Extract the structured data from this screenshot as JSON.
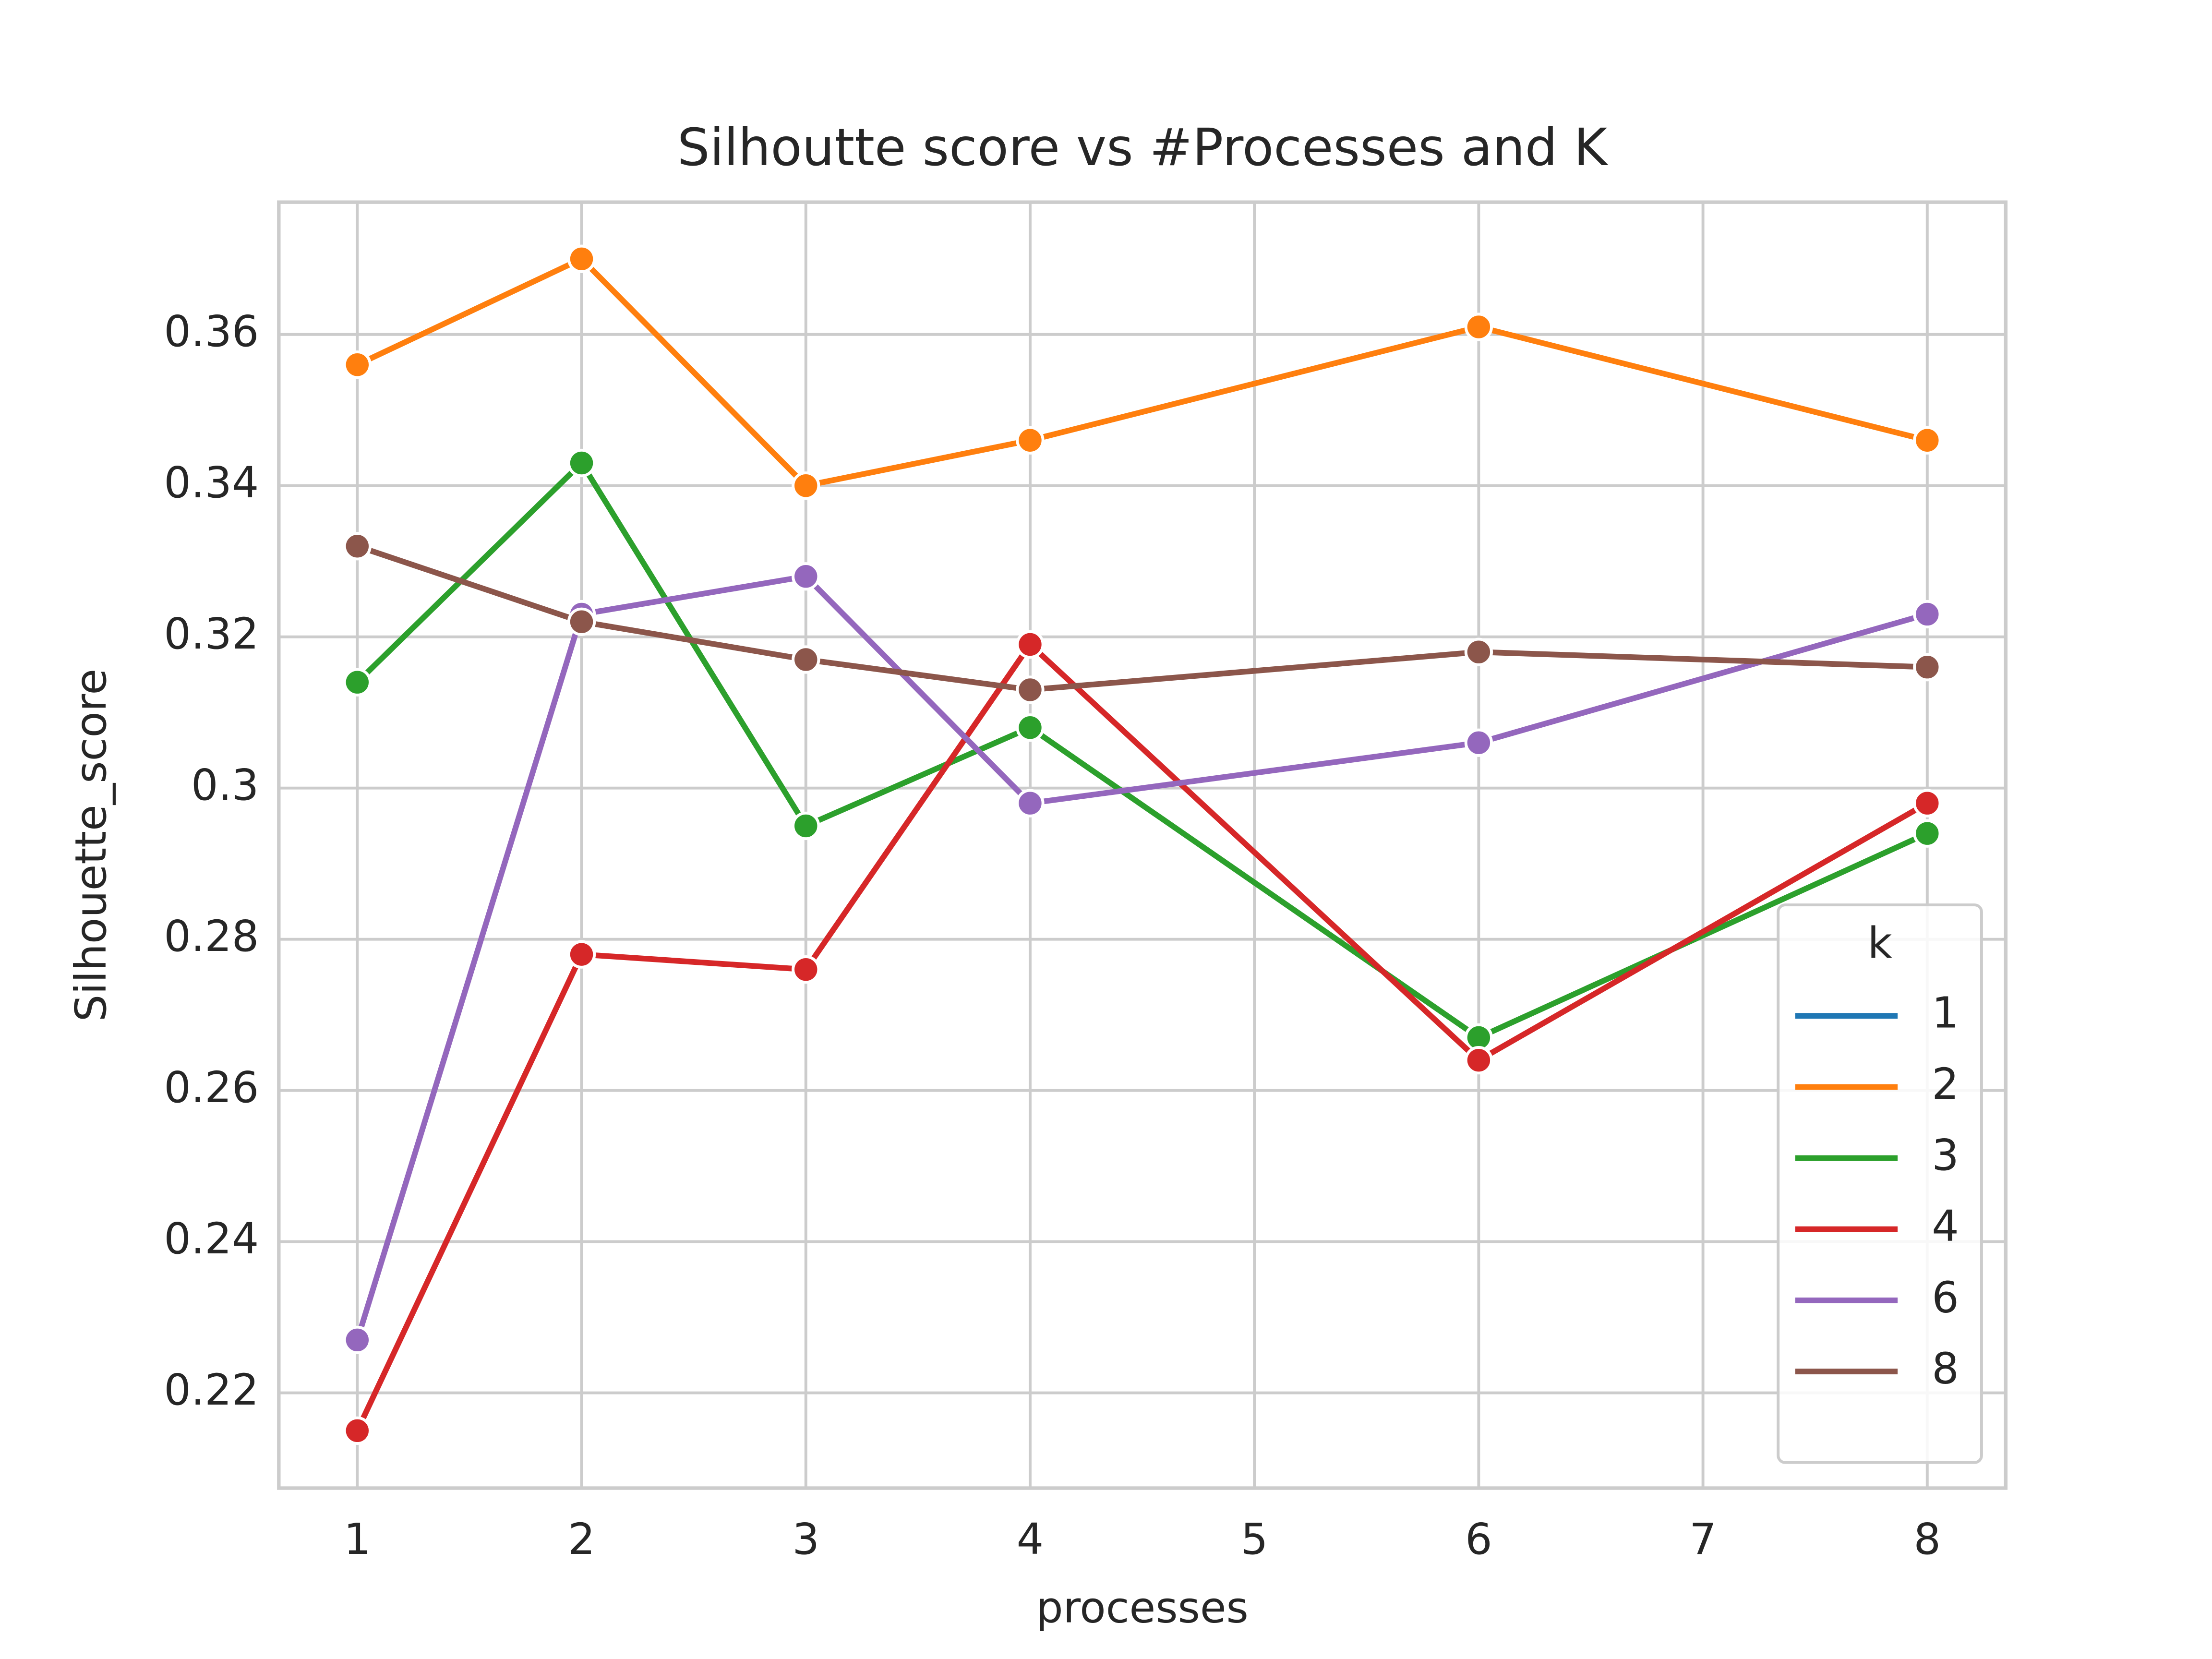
{
  "chart_data": {
    "type": "line",
    "title": "Silhoutte score vs #Processes and K",
    "xlabel": "processes",
    "ylabel": "Silhouette_score",
    "x": [
      1,
      2,
      3,
      4,
      6,
      8
    ],
    "series": [
      {
        "name": "1",
        "color": "#1f77b4",
        "values": [
          null,
          null,
          null,
          null,
          null,
          null
        ]
      },
      {
        "name": "2",
        "color": "#ff7f0e",
        "values": [
          0.356,
          0.37,
          0.34,
          0.346,
          0.361,
          0.346
        ]
      },
      {
        "name": "3",
        "color": "#2ca02c",
        "values": [
          0.314,
          0.343,
          0.295,
          0.308,
          0.267,
          0.294
        ]
      },
      {
        "name": "4",
        "color": "#d62728",
        "values": [
          0.215,
          0.278,
          0.276,
          0.319,
          0.264,
          0.298
        ]
      },
      {
        "name": "6",
        "color": "#9467bd",
        "values": [
          0.227,
          0.323,
          0.328,
          0.298,
          0.306,
          0.323
        ]
      },
      {
        "name": "8",
        "color": "#8c564b",
        "values": [
          0.332,
          0.322,
          0.317,
          0.313,
          0.318,
          0.316
        ]
      }
    ],
    "legend_title": "k",
    "legend": "lower right",
    "grid": true,
    "xlim": [
      0.65,
      8.35
    ],
    "xticks": [
      1,
      2,
      3,
      4,
      5,
      6,
      7,
      8
    ],
    "ylim": [
      0.2074,
      0.3775
    ],
    "yticks": [
      0.22,
      0.24,
      0.26,
      0.28,
      0.3,
      0.32,
      0.34,
      0.36
    ]
  }
}
